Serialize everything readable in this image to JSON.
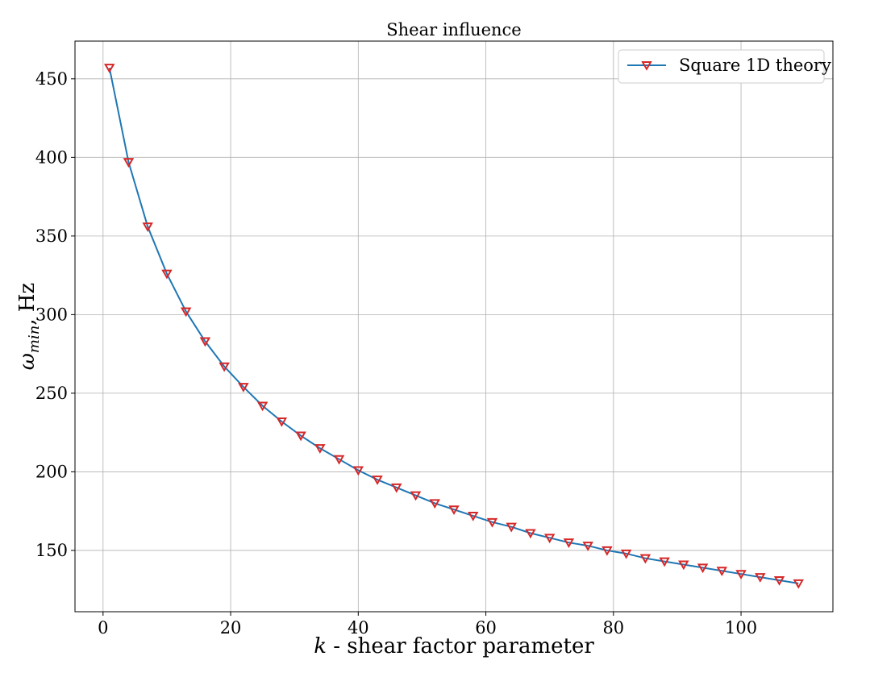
{
  "chart_data": {
    "type": "line",
    "title": "Shear influence",
    "xlabel": {
      "var": "k",
      "rest": " - shear factor parameter"
    },
    "ylabel": {
      "var": "ω",
      "sub": "min",
      "rest": ", Hz"
    },
    "xlim": [
      -4.4,
      114.4
    ],
    "ylim": [
      111,
      474
    ],
    "xticks": [
      0,
      20,
      40,
      60,
      80,
      100
    ],
    "yticks": [
      150,
      200,
      250,
      300,
      350,
      400,
      450
    ],
    "grid": true,
    "legend_position": "top-right",
    "series": [
      {
        "name": "Square 1D theory",
        "line_color": "#1f77b4",
        "marker": "triangle-down",
        "marker_edge_color": "#d62728",
        "x": [
          1,
          4,
          7,
          10,
          13,
          16,
          19,
          22,
          25,
          28,
          31,
          34,
          37,
          40,
          43,
          46,
          49,
          52,
          55,
          58,
          61,
          64,
          67,
          70,
          73,
          76,
          79,
          82,
          85,
          88,
          91,
          94,
          97,
          100,
          103,
          106,
          109
        ],
        "y": [
          457,
          397,
          356,
          326,
          302,
          283,
          267,
          254,
          242,
          232,
          223,
          215,
          208,
          201,
          195,
          190,
          185,
          180,
          176,
          172,
          168,
          165,
          161,
          158,
          155,
          153,
          150,
          148,
          145,
          143,
          141,
          139,
          137,
          135,
          133,
          131,
          129
        ]
      }
    ]
  }
}
